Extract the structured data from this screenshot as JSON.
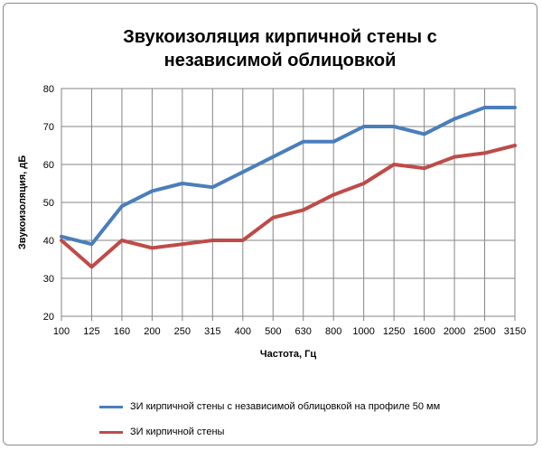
{
  "chart_data": {
    "type": "line",
    "title": "Звукоизоляция кирпичной стены с независимой облицовкой",
    "title_lines": [
      "Звукоизоляция кирпичной стены с",
      "независимой облицовкой"
    ],
    "xlabel": "Частота, Гц",
    "ylabel": "Звукоизоляция, дБ",
    "ylim": [
      20,
      80
    ],
    "yticks": [
      20,
      30,
      40,
      50,
      60,
      70,
      80
    ],
    "grid": true,
    "legend_position": "bottom",
    "categories": [
      "100",
      "125",
      "160",
      "200",
      "250",
      "315",
      "400",
      "500",
      "630",
      "800",
      "1000",
      "1250",
      "1600",
      "2000",
      "2500",
      "3150"
    ],
    "series": [
      {
        "name": "ЗИ кирпичной стены с независимой облицовкой на профиле 50 мм",
        "color": "#4a7ebb",
        "values": [
          41,
          39,
          49,
          53,
          55,
          54,
          58,
          62,
          66,
          66,
          70,
          70,
          68,
          72,
          75,
          75
        ]
      },
      {
        "name": "ЗИ кирпичной стены",
        "color": "#be4b48",
        "values": [
          40,
          33,
          40,
          38,
          39,
          40,
          40,
          46,
          48,
          52,
          55,
          60,
          59,
          62,
          63,
          65
        ]
      }
    ]
  }
}
